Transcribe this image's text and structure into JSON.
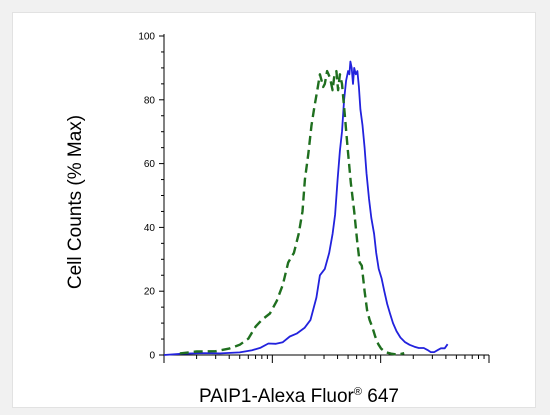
{
  "chart_data": {
    "type": "line",
    "title": "",
    "xlabel": "PAIP1-Alexa Fluor® 647",
    "xlabel_parts": {
      "main": "PAIP1-Alexa Fluor",
      "sup": "®",
      "suffix": " 647"
    },
    "ylabel": "Cell Counts (% Max)",
    "x_scale": "log",
    "xlim": [
      1,
      1000
    ],
    "ylim": [
      0,
      100
    ],
    "y_ticks": [
      0,
      20,
      40,
      60,
      80,
      100
    ],
    "y_tick_labels": [
      "0",
      "20",
      "40",
      "60",
      "80",
      "100"
    ],
    "grid": false,
    "legend": "none",
    "series": [
      {
        "style": "solid",
        "color": "#2222dd",
        "points": [
          [
            1.0,
            0
          ],
          [
            1.5,
            0.4
          ],
          [
            2.3,
            0.6
          ],
          [
            3.3,
            0.5
          ],
          [
            5.0,
            0.8
          ],
          [
            6.5,
            1.5
          ],
          [
            7.8,
            2.3
          ],
          [
            9.2,
            3.6
          ],
          [
            10.8,
            3.5
          ],
          [
            12.5,
            4.0
          ],
          [
            14.5,
            5.8
          ],
          [
            16.8,
            6.7
          ],
          [
            19.8,
            8.5
          ],
          [
            22.5,
            11
          ],
          [
            25.5,
            18
          ],
          [
            27.5,
            25
          ],
          [
            30.5,
            27
          ],
          [
            33.5,
            32
          ],
          [
            36.0,
            38
          ],
          [
            38.0,
            44
          ],
          [
            40.0,
            55
          ],
          [
            42.0,
            64
          ],
          [
            44.0,
            70
          ],
          [
            46.0,
            80
          ],
          [
            48.0,
            86
          ],
          [
            50.0,
            89
          ],
          [
            51.5,
            88
          ],
          [
            52.5,
            92
          ],
          [
            54.0,
            90
          ],
          [
            55.5,
            85
          ],
          [
            57.0,
            90
          ],
          [
            59.0,
            88
          ],
          [
            61.0,
            89
          ],
          [
            63.0,
            84
          ],
          [
            65.0,
            77
          ],
          [
            68.0,
            72
          ],
          [
            71.0,
            65
          ],
          [
            74.0,
            57
          ],
          [
            78.0,
            49
          ],
          [
            82.0,
            43
          ],
          [
            87.0,
            38
          ],
          [
            91.0,
            32
          ],
          [
            96.0,
            27
          ],
          [
            102.0,
            24
          ],
          [
            108.0,
            20
          ],
          [
            115.0,
            16
          ],
          [
            122.0,
            13
          ],
          [
            130.0,
            10
          ],
          [
            140.0,
            7.5
          ],
          [
            152.0,
            5.5
          ],
          [
            168.0,
            4
          ],
          [
            185.0,
            3.2
          ],
          [
            205.0,
            2.6
          ],
          [
            225.0,
            2.2
          ],
          [
            250.0,
            2.2
          ],
          [
            270.0,
            1.6
          ],
          [
            290.0,
            0.9
          ],
          [
            312.0,
            0.9
          ],
          [
            335.0,
            1.5
          ],
          [
            360.0,
            2.1
          ],
          [
            390.0,
            2.1
          ],
          [
            415.0,
            3.4
          ]
        ]
      },
      {
        "style": "dashed",
        "color": "#1f6f1f",
        "points": [
          [
            1.4,
            0.5
          ],
          [
            2.0,
            1.1
          ],
          [
            3.0,
            1.2
          ],
          [
            4.0,
            2.0
          ],
          [
            5.0,
            3.2
          ],
          [
            6.0,
            5.1
          ],
          [
            7.0,
            8.9
          ],
          [
            8.0,
            11
          ],
          [
            9.5,
            13
          ],
          [
            11.0,
            17
          ],
          [
            12.5,
            22
          ],
          [
            14.0,
            29
          ],
          [
            15.8,
            32
          ],
          [
            17.5,
            38
          ],
          [
            19.0,
            45
          ],
          [
            20.0,
            55
          ],
          [
            21.5,
            63
          ],
          [
            23.0,
            72
          ],
          [
            24.5,
            78
          ],
          [
            26.0,
            83
          ],
          [
            27.5,
            88
          ],
          [
            28.5,
            86
          ],
          [
            29.5,
            84
          ],
          [
            30.5,
            85
          ],
          [
            32.0,
            89
          ],
          [
            34.0,
            87
          ],
          [
            36.0,
            83
          ],
          [
            37.5,
            88
          ],
          [
            39.0,
            89
          ],
          [
            40.5,
            83
          ],
          [
            42.0,
            88
          ],
          [
            44.0,
            85
          ],
          [
            46.5,
            76
          ],
          [
            49.5,
            65
          ],
          [
            53.0,
            54
          ],
          [
            57.0,
            45
          ],
          [
            61.0,
            35
          ],
          [
            64.0,
            29
          ],
          [
            67.0,
            28
          ],
          [
            71.0,
            20
          ],
          [
            75.0,
            14
          ],
          [
            79.0,
            11
          ],
          [
            84.0,
            8.6
          ],
          [
            89.0,
            5.8
          ],
          [
            95.0,
            3.4
          ],
          [
            101.0,
            2.0
          ],
          [
            110.0,
            0.9
          ],
          [
            125.0,
            0.4
          ],
          [
            145.0,
            0.1
          ],
          [
            165.0,
            0.6
          ]
        ]
      }
    ]
  }
}
